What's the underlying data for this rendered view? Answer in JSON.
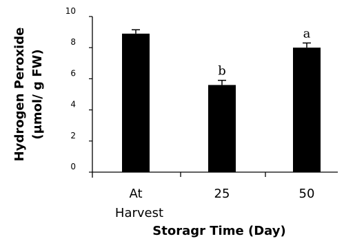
{
  "chart_data": {
    "type": "bar",
    "categories": [
      "At\nHarvest",
      "25",
      "50"
    ],
    "values": [
      8.9,
      5.6,
      8.0
    ],
    "errors": [
      0.25,
      0.3,
      0.3
    ],
    "annotations": [
      "",
      "b",
      "a"
    ],
    "ylabel": "Hydrogen Peroxide\n(μmol/ g FW)",
    "xlabel": "Storagr Time (Day)",
    "ylim": [
      0,
      10
    ],
    "yticks": [
      0,
      2,
      4,
      6,
      8,
      10
    ],
    "grid": false,
    "bar_color": "#000000"
  }
}
